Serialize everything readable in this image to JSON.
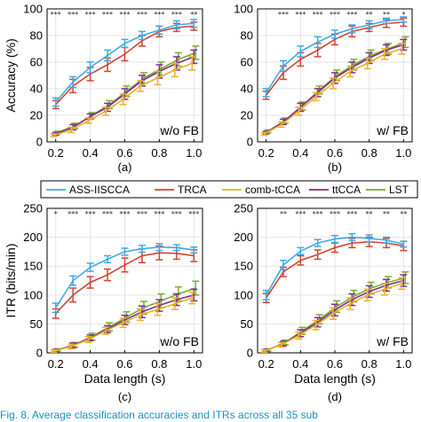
{
  "chart_data": [
    {
      "type": "line",
      "panel_label": "(a)",
      "condition": "w/o FB",
      "x": [
        0.2,
        0.3,
        0.4,
        0.5,
        0.6,
        0.7,
        0.8,
        0.9,
        1.0
      ],
      "xticks": [
        "0.2",
        "0.4",
        "0.6",
        "0.8",
        "1.0"
      ],
      "ylabel": "Accuracy (%)",
      "xlabel": "",
      "ylim": [
        0,
        100
      ],
      "yticks": [
        "0",
        "20",
        "40",
        "60",
        "80",
        "100"
      ],
      "grid": true,
      "series": [
        {
          "name": "ASS-IISCCA",
          "values": [
            30,
            45,
            56,
            65,
            74,
            80,
            84,
            88,
            89
          ],
          "err": [
            3,
            4,
            4,
            4,
            3,
            3,
            3,
            3,
            3
          ]
        },
        {
          "name": "TRCA",
          "values": [
            28,
            42,
            51,
            58,
            66,
            76,
            83,
            86,
            87
          ],
          "err": [
            3,
            5,
            5,
            5,
            5,
            4,
            4,
            3,
            3
          ]
        },
        {
          "name": "comb-tCCA",
          "values": [
            5,
            9,
            16,
            23,
            32,
            42,
            48,
            54,
            59
          ],
          "err": [
            1,
            2,
            2,
            3,
            4,
            4,
            5,
            5,
            5
          ]
        },
        {
          "name": "ttCCA",
          "values": [
            6,
            11,
            19,
            26,
            36,
            46,
            53,
            59,
            64
          ],
          "err": [
            1,
            2,
            2,
            3,
            4,
            4,
            5,
            5,
            5
          ]
        },
        {
          "name": "LST",
          "values": [
            7,
            12,
            20,
            28,
            38,
            48,
            55,
            62,
            67
          ],
          "err": [
            1,
            2,
            2,
            3,
            4,
            4,
            5,
            5,
            5
          ]
        }
      ],
      "significance": [
        "***",
        "***",
        "***",
        "***",
        "***",
        "***",
        "***",
        "***",
        "**"
      ]
    },
    {
      "type": "line",
      "panel_label": "(b)",
      "condition": "w/ FB",
      "x": [
        0.2,
        0.3,
        0.4,
        0.5,
        0.6,
        0.7,
        0.8,
        0.9,
        1.0
      ],
      "xticks": [
        "0.2",
        "0.4",
        "0.6",
        "0.8",
        "1.0"
      ],
      "ylabel": "",
      "xlabel": "",
      "ylim": [
        0,
        100
      ],
      "yticks": [
        "0",
        "20",
        "40",
        "60",
        "80",
        "100"
      ],
      "grid": true,
      "series": [
        {
          "name": "ASS-IISCCA",
          "values": [
            37,
            57,
            68,
            75,
            81,
            85,
            88,
            91,
            92
          ],
          "err": [
            3,
            4,
            4,
            4,
            3,
            3,
            3,
            2,
            2
          ]
        },
        {
          "name": "TRCA",
          "values": [
            35,
            52,
            62,
            69,
            77,
            83,
            86,
            89,
            90
          ],
          "err": [
            3,
            5,
            5,
            5,
            4,
            4,
            3,
            3,
            3
          ]
        },
        {
          "name": "comb-tCCA",
          "values": [
            6,
            13,
            23,
            34,
            44,
            53,
            59,
            66,
            70
          ],
          "err": [
            1,
            2,
            3,
            3,
            4,
            4,
            4,
            4,
            4
          ]
        },
        {
          "name": "ttCCA",
          "values": [
            7,
            15,
            26,
            37,
            48,
            56,
            63,
            69,
            73
          ],
          "err": [
            1,
            2,
            3,
            3,
            4,
            4,
            4,
            4,
            4
          ]
        },
        {
          "name": "LST",
          "values": [
            8,
            16,
            27,
            39,
            50,
            58,
            65,
            70,
            75
          ],
          "err": [
            1,
            2,
            3,
            3,
            4,
            4,
            4,
            4,
            4
          ]
        }
      ],
      "significance": [
        "",
        "***",
        "***",
        "***",
        "***",
        "***",
        "**",
        "**",
        "*"
      ]
    },
    {
      "type": "line",
      "panel_label": "(c)",
      "condition": "w/o FB",
      "x": [
        0.2,
        0.3,
        0.4,
        0.5,
        0.6,
        0.7,
        0.8,
        0.9,
        1.0
      ],
      "xticks": [
        "0.2",
        "0.4",
        "0.6",
        "0.8",
        "1.0"
      ],
      "ylabel": "ITR (bits/min)",
      "xlabel": "Data length (s)",
      "ylim": [
        0,
        250
      ],
      "yticks": [
        "0",
        "50",
        "100",
        "150",
        "200",
        "250"
      ],
      "grid": true,
      "series": [
        {
          "name": "ASS-IISCCA",
          "values": [
            78,
            125,
            148,
            162,
            175,
            180,
            183,
            182,
            178
          ],
          "err": [
            8,
            8,
            7,
            6,
            6,
            6,
            6,
            5,
            5
          ]
        },
        {
          "name": "TRCA",
          "values": [
            68,
            100,
            122,
            135,
            152,
            168,
            173,
            172,
            168
          ],
          "err": [
            8,
            12,
            10,
            10,
            12,
            12,
            12,
            10,
            10
          ]
        },
        {
          "name": "comb-tCCA",
          "values": [
            3,
            11,
            23,
            38,
            52,
            66,
            75,
            85,
            95
          ],
          "err": [
            2,
            4,
            5,
            6,
            8,
            10,
            10,
            10,
            10
          ]
        },
        {
          "name": "ttCCA",
          "values": [
            4,
            13,
            26,
            41,
            57,
            71,
            82,
            92,
            100
          ],
          "err": [
            2,
            4,
            5,
            6,
            8,
            10,
            10,
            10,
            10
          ]
        },
        {
          "name": "LST",
          "values": [
            5,
            14,
            28,
            45,
            62,
            78,
            90,
            102,
            112
          ],
          "err": [
            2,
            4,
            6,
            7,
            9,
            11,
            12,
            12,
            12
          ]
        }
      ],
      "significance": [
        "*",
        "***",
        "***",
        "***",
        "***",
        "***",
        "***",
        "***",
        "***"
      ]
    },
    {
      "type": "line",
      "panel_label": "(d)",
      "condition": "w/ FB",
      "x": [
        0.2,
        0.3,
        0.4,
        0.5,
        0.6,
        0.7,
        0.8,
        0.9,
        1.0
      ],
      "xticks": [
        "0.2",
        "0.4",
        "0.6",
        "0.8",
        "1.0"
      ],
      "ylabel": "",
      "xlabel": "Data length (s)",
      "ylim": [
        0,
        250
      ],
      "yticks": [
        "0",
        "50",
        "100",
        "150",
        "200",
        "250"
      ],
      "grid": true,
      "series": [
        {
          "name": "ASS-IISCCA",
          "values": [
            100,
            152,
            176,
            190,
            197,
            200,
            198,
            195,
            188
          ],
          "err": [
            8,
            8,
            6,
            6,
            6,
            6,
            6,
            5,
            5
          ]
        },
        {
          "name": "TRCA",
          "values": [
            95,
            140,
            160,
            170,
            182,
            190,
            192,
            190,
            185
          ],
          "err": [
            8,
            8,
            8,
            8,
            8,
            8,
            8,
            8,
            8
          ]
        },
        {
          "name": "comb-tCCA",
          "values": [
            3,
            14,
            30,
            48,
            68,
            85,
            100,
            110,
            120
          ],
          "err": [
            2,
            4,
            6,
            8,
            10,
            10,
            10,
            10,
            10
          ]
        },
        {
          "name": "ttCCA",
          "values": [
            4,
            16,
            34,
            53,
            74,
            92,
            106,
            117,
            125
          ],
          "err": [
            2,
            4,
            6,
            8,
            10,
            10,
            10,
            10,
            10
          ]
        },
        {
          "name": "LST",
          "values": [
            5,
            18,
            38,
            58,
            80,
            98,
            112,
            122,
            130
          ],
          "err": [
            2,
            4,
            6,
            8,
            10,
            10,
            10,
            10,
            10
          ]
        }
      ],
      "significance": [
        "",
        "**",
        "***",
        "***",
        "***",
        "***",
        "**",
        "**",
        "**"
      ]
    }
  ],
  "legend": {
    "placement": "center",
    "entries": [
      "ASS-IISCCA",
      "TRCA",
      "comb-tCCA",
      "ttCCA",
      "LST"
    ]
  },
  "colors": {
    "ASS-IISCCA": "#3fa9e6",
    "TRCA": "#d2432f",
    "comb-tCCA": "#eab02a",
    "ttCCA": "#7e2f8e",
    "LST": "#77ac30"
  },
  "caption": "Fig. 8.  Average classification accuracies and ITRs across all 35 sub"
}
